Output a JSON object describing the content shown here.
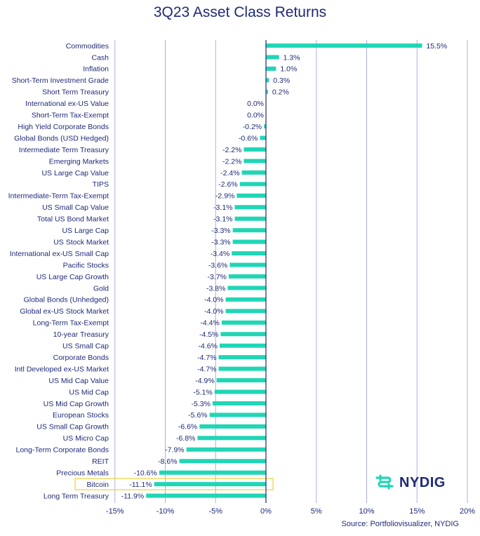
{
  "chart_data": {
    "type": "bar",
    "orientation": "horizontal",
    "title": "3Q23 Asset Class Returns",
    "categories": [
      "Commodities",
      "Cash",
      "Inflation",
      "Short-Term Investment Grade",
      "Short Term Treasury",
      "International ex-US Value",
      "Short-Term Tax-Exempt",
      "High Yield Corporate Bonds",
      "Global Bonds (USD Hedged)",
      "Intermediate Term Treasury",
      "Emerging Markets",
      "US Large Cap Value",
      "TIPS",
      "Intermediate-Term Tax-Exempt",
      "US Small Cap Value",
      "Total US Bond Market",
      "US Large Cap",
      "US Stock Market",
      "International ex-US Small Cap",
      "Pacific Stocks",
      "US Large Cap Growth",
      "Gold",
      "Global Bonds (Unhedged)",
      "Global ex-US Stock Market",
      "Long-Term Tax-Exempt",
      "10-year Treasury",
      "US Small Cap",
      "Corporate Bonds",
      "Intl Developed ex-US Market",
      "US Mid Cap Value",
      "US Mid Cap",
      "US Mid Cap Growth",
      "European Stocks",
      "US Small Cap Growth",
      "US Micro Cap",
      "Long-Term Corporate Bonds",
      "REIT",
      "Precious Metals",
      "Bitcoin",
      "Long Term Treasury"
    ],
    "values": [
      15.5,
      1.3,
      1.0,
      0.3,
      0.2,
      0.0,
      0.0,
      -0.2,
      -0.6,
      -2.2,
      -2.2,
      -2.4,
      -2.6,
      -2.9,
      -3.1,
      -3.1,
      -3.3,
      -3.3,
      -3.4,
      -3.6,
      -3.7,
      -3.8,
      -4.0,
      -4.0,
      -4.4,
      -4.5,
      -4.6,
      -4.7,
      -4.7,
      -4.9,
      -5.1,
      -5.3,
      -5.6,
      -6.6,
      -6.8,
      -7.9,
      -8.6,
      -10.6,
      -11.1,
      -11.9
    ],
    "value_labels": [
      "15.5%",
      "1.3%",
      "1.0%",
      "0.3%",
      "0.2%",
      "0.0%",
      "0.0%",
      "-0.2%",
      "-0.6%",
      "-2.2%",
      "-2.2%",
      "-2.4%",
      "-2.6%",
      "-2.9%",
      "-3.1%",
      "-3.1%",
      "-3.3%",
      "-3.3%",
      "-3.4%",
      "-3.6%",
      "-3.7%",
      "-3.8%",
      "-4.0%",
      "-4.0%",
      "-4.4%",
      "-4.5%",
      "-4.6%",
      "-4.7%",
      "-4.7%",
      "-4.9%",
      "-5.1%",
      "-5.3%",
      "-5.6%",
      "-6.6%",
      "-6.8%",
      "-7.9%",
      "-8.6%",
      "-10.6%",
      "-11.1%",
      "-11.9%"
    ],
    "xlim": [
      -15,
      20
    ],
    "xticks": [
      -15,
      -10,
      -5,
      0,
      5,
      10,
      15,
      20
    ],
    "xtick_labels": [
      "-15%",
      "-10%",
      "-5%",
      "0%",
      "5%",
      "10%",
      "15%",
      "20%"
    ],
    "highlighted_category": "Bitcoin",
    "grid": "vertical",
    "source": "Source: Portfoliovisualizer, NYDIG"
  },
  "colors": {
    "bar": "#20d6b5",
    "title": "#1e2a78",
    "text": "#1e2a78",
    "grid": "#aab0e0",
    "highlight_box": "#f2cf3a"
  },
  "logo": {
    "text": "NYDIG",
    "icon": "nydig-mark-icon"
  }
}
